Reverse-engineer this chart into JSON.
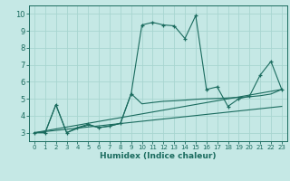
{
  "xlabel": "Humidex (Indice chaleur)",
  "xlim": [
    -0.5,
    23.5
  ],
  "ylim": [
    2.5,
    10.5
  ],
  "xticks": [
    0,
    1,
    2,
    3,
    4,
    5,
    6,
    7,
    8,
    9,
    10,
    11,
    12,
    13,
    14,
    15,
    16,
    17,
    18,
    19,
    20,
    21,
    22,
    23
  ],
  "yticks": [
    3,
    4,
    5,
    6,
    7,
    8,
    9,
    10
  ],
  "background_color": "#c5e8e5",
  "grid_color": "#a8d5d0",
  "line_color": "#1a6b5e",
  "series": [
    {
      "x": [
        0,
        1,
        2,
        3,
        4,
        5,
        6,
        7,
        8,
        9,
        10,
        11,
        12,
        13,
        14,
        15,
        16,
        17,
        18,
        19,
        20,
        21,
        22,
        23
      ],
      "y": [
        3.0,
        3.0,
        4.65,
        3.0,
        3.3,
        3.5,
        3.3,
        3.4,
        3.55,
        5.3,
        9.35,
        9.5,
        9.35,
        9.3,
        8.55,
        9.9,
        5.55,
        5.7,
        4.55,
        5.0,
        5.15,
        6.4,
        7.2,
        5.55
      ],
      "has_markers": true
    },
    {
      "x": [
        0,
        1,
        2,
        3,
        4,
        5,
        6,
        7,
        8,
        9,
        10,
        11,
        12,
        13,
        14,
        15,
        16,
        17,
        18,
        19,
        20,
        21,
        22,
        23
      ],
      "y": [
        3.0,
        3.0,
        4.65,
        3.0,
        3.25,
        3.45,
        3.3,
        3.38,
        3.55,
        5.3,
        4.7,
        4.78,
        4.85,
        4.88,
        4.92,
        4.97,
        5.0,
        5.02,
        5.05,
        5.08,
        5.12,
        5.18,
        5.28,
        5.55
      ],
      "has_markers": false
    },
    {
      "x": [
        0,
        23
      ],
      "y": [
        3.0,
        5.55
      ],
      "has_markers": false
    },
    {
      "x": [
        0,
        23
      ],
      "y": [
        3.0,
        4.55
      ],
      "has_markers": false
    }
  ]
}
